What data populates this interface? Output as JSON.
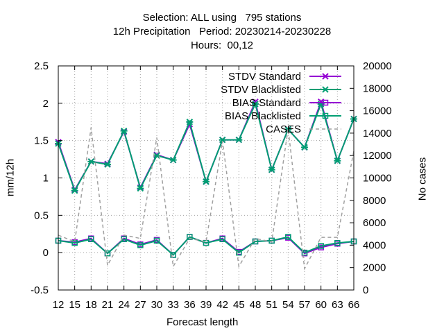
{
  "titles": [
    "Selection: ALL using   795 stations",
    "12h Precipitation   Period: 20230214-20230228",
    "Hours:  00,12"
  ],
  "colors": {
    "stdv_standard": "#9400d3",
    "stdv_blacklisted": "#009e73",
    "bias_standard": "#9400d3",
    "bias_blacklisted": "#009e73",
    "cases": "#a0a0a0",
    "grid": "#a0a0a0"
  },
  "chart_data": {
    "type": "line",
    "xlabel": "Forecast length",
    "ylabel": "mm/12h",
    "y2label": "No cases",
    "x": [
      12,
      15,
      18,
      21,
      24,
      27,
      30,
      33,
      36,
      39,
      42,
      45,
      48,
      51,
      54,
      57,
      60,
      63,
      66
    ],
    "xlim": [
      12,
      66
    ],
    "ylim": [
      -0.5,
      2.5
    ],
    "y2lim": [
      0,
      20000
    ],
    "yticks": [
      -0.5,
      0,
      0.5,
      1,
      1.5,
      2,
      2.5
    ],
    "ytick_labels": [
      "-0.5",
      "0",
      "0.5",
      "1",
      "1.5",
      "2",
      "2.5"
    ],
    "y2ticks": [
      0,
      2000,
      4000,
      6000,
      8000,
      10000,
      12000,
      14000,
      16000,
      18000,
      20000
    ],
    "y2tick_labels": [
      "0",
      "2000",
      "4000",
      "6000",
      "8000",
      "10000",
      "12000",
      "14000",
      "16000",
      "18000",
      "20000"
    ],
    "xtick_labels": [
      "12",
      "15",
      "18",
      "21",
      "24",
      "27",
      "30",
      "33",
      "36",
      "39",
      "42",
      "45",
      "48",
      "51",
      "54",
      "57",
      "60",
      "63",
      "66"
    ],
    "grid": true,
    "legend_position": "top-right",
    "series": [
      {
        "name": "STDV Standard",
        "axis": "y1",
        "style": "solid",
        "marker": "x",
        "values": [
          1.48,
          0.84,
          1.22,
          1.19,
          1.62,
          0.87,
          1.31,
          1.24,
          1.72,
          0.95,
          1.51,
          1.51,
          2.02,
          1.11,
          1.65,
          1.41,
          2.02,
          1.23,
          1.79
        ]
      },
      {
        "name": "STDV Blacklisted",
        "axis": "y1",
        "style": "solid",
        "marker": "asterisk",
        "values": [
          1.46,
          0.83,
          1.22,
          1.18,
          1.63,
          0.86,
          1.3,
          1.24,
          1.75,
          0.95,
          1.51,
          1.51,
          1.99,
          1.11,
          1.65,
          1.41,
          1.99,
          1.23,
          1.79
        ]
      },
      {
        "name": "BIAS Standard",
        "axis": "y1",
        "style": "solid",
        "marker": "square",
        "values": [
          0.16,
          0.14,
          0.19,
          -0.01,
          0.19,
          0.11,
          0.17,
          -0.03,
          0.21,
          0.13,
          0.19,
          0.01,
          0.15,
          0.16,
          0.2,
          -0.01,
          0.07,
          0.12,
          0.15
        ]
      },
      {
        "name": "BIAS Blacklisted",
        "axis": "y1",
        "style": "solid",
        "marker": "square",
        "values": [
          0.16,
          0.13,
          0.18,
          -0.01,
          0.18,
          0.1,
          0.16,
          -0.03,
          0.21,
          0.13,
          0.18,
          0.0,
          0.15,
          0.16,
          0.21,
          0.0,
          0.09,
          0.13,
          0.15
        ]
      },
      {
        "name": "CASES",
        "axis": "y2",
        "style": "dashed",
        "marker": "none",
        "values": [
          4900,
          4300,
          14500,
          2200,
          4900,
          4600,
          13600,
          2100,
          4600,
          4300,
          13300,
          2100,
          4600,
          4300,
          14400,
          1900,
          4700,
          4700,
          12400
        ]
      }
    ]
  }
}
